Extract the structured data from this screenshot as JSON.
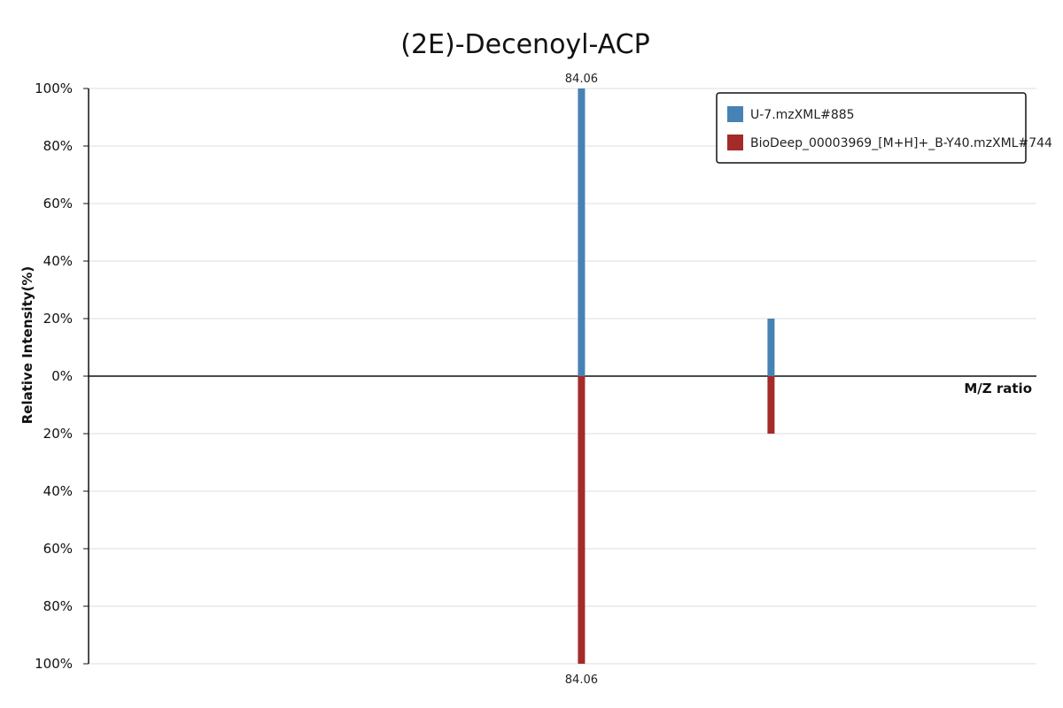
{
  "chart_data": {
    "type": "bar",
    "title": "(2E)-Decenoyl-ACP",
    "xlabel": "M/Z ratio",
    "ylabel": "Relative Intensity(%)",
    "ylim": [
      -100,
      100
    ],
    "yticks": [
      "100%",
      "80%",
      "60%",
      "40%",
      "20%",
      "0%",
      "20%",
      "40%",
      "60%",
      "80%",
      "100%"
    ],
    "grid": true,
    "legend": "top-right",
    "series": [
      {
        "name": "U-7.mzXML#885",
        "color": "#4682b4",
        "direction": "up",
        "peaks": [
          {
            "mz": 84.06,
            "intensity": 100,
            "label": "84.06"
          },
          {
            "mz": 84.16,
            "intensity": 20
          }
        ]
      },
      {
        "name": "BioDeep_00003969_[M+H]+_B-Y40.mzXML#744",
        "color": "#a52a2a",
        "direction": "down",
        "peaks": [
          {
            "mz": 84.06,
            "intensity": 100,
            "label": "84.06"
          },
          {
            "mz": 84.16,
            "intensity": 20
          }
        ]
      }
    ]
  }
}
